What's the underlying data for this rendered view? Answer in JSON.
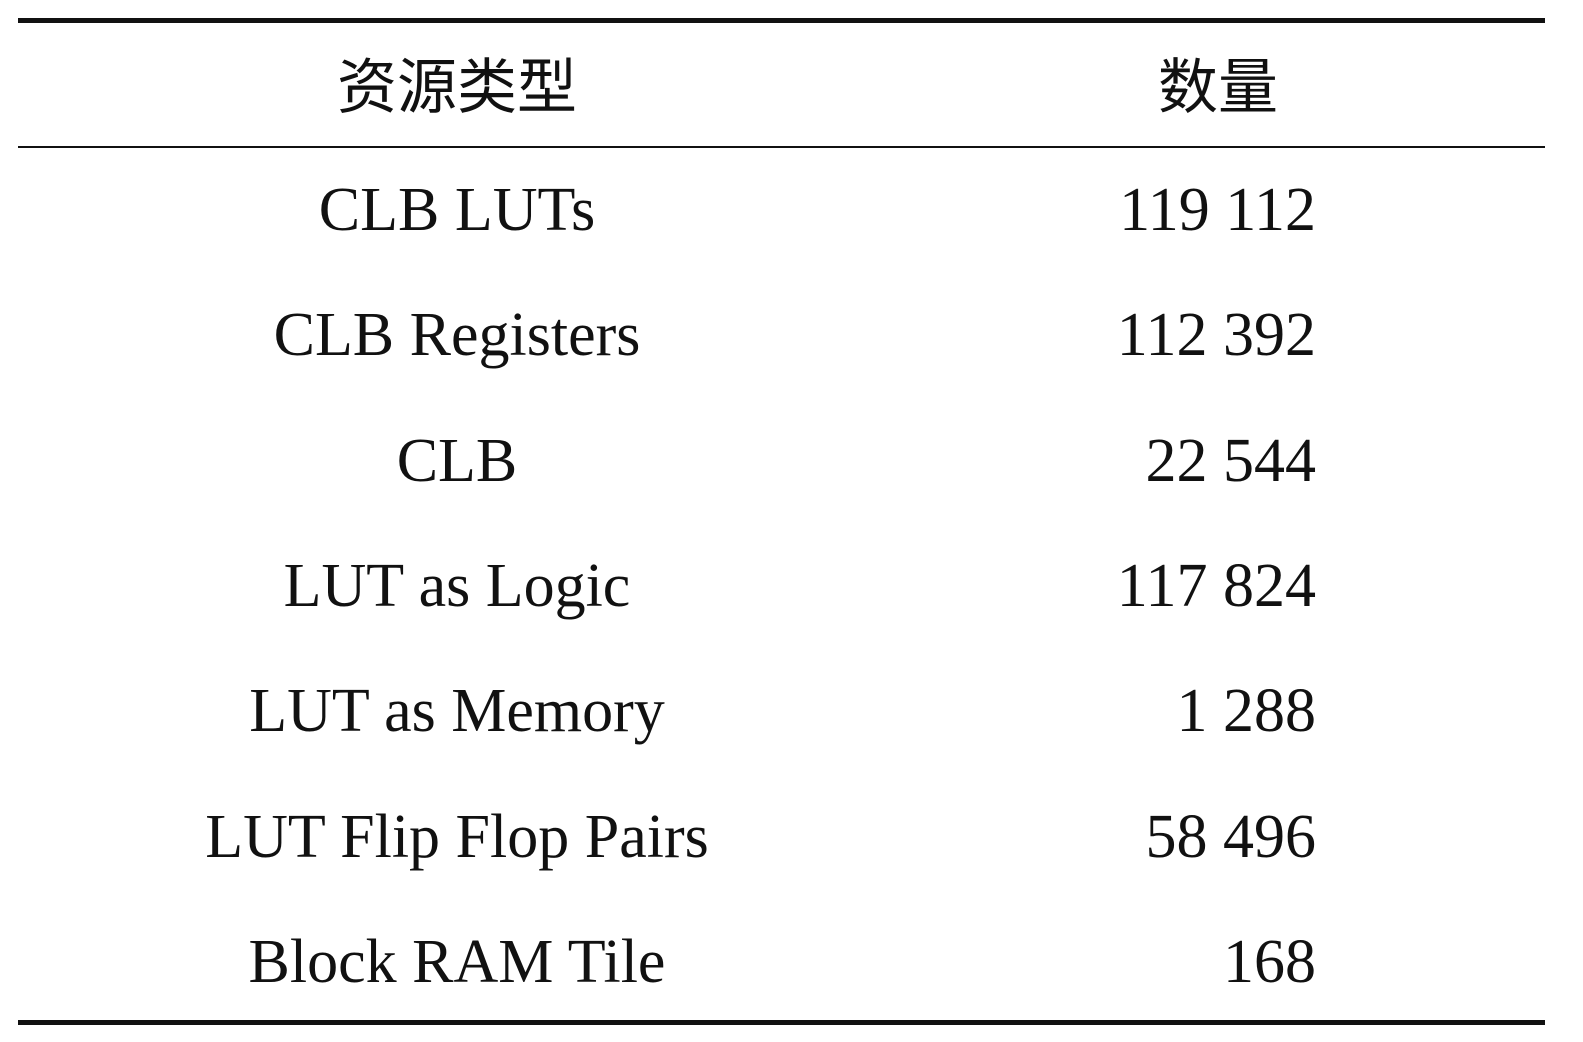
{
  "table": {
    "headers": [
      "资源类型",
      "数量"
    ],
    "rows": [
      {
        "type": "CLB LUTs",
        "count": "119 112"
      },
      {
        "type": "CLB Registers",
        "count": "112 392"
      },
      {
        "type": "CLB",
        "count": "22 544"
      },
      {
        "type": "LUT as Logic",
        "count": "117 824"
      },
      {
        "type": "LUT as Memory",
        "count": "1 288"
      },
      {
        "type": "LUT Flip Flop Pairs",
        "count": "58 496"
      },
      {
        "type": "Block RAM Tile",
        "count": "168"
      }
    ]
  }
}
